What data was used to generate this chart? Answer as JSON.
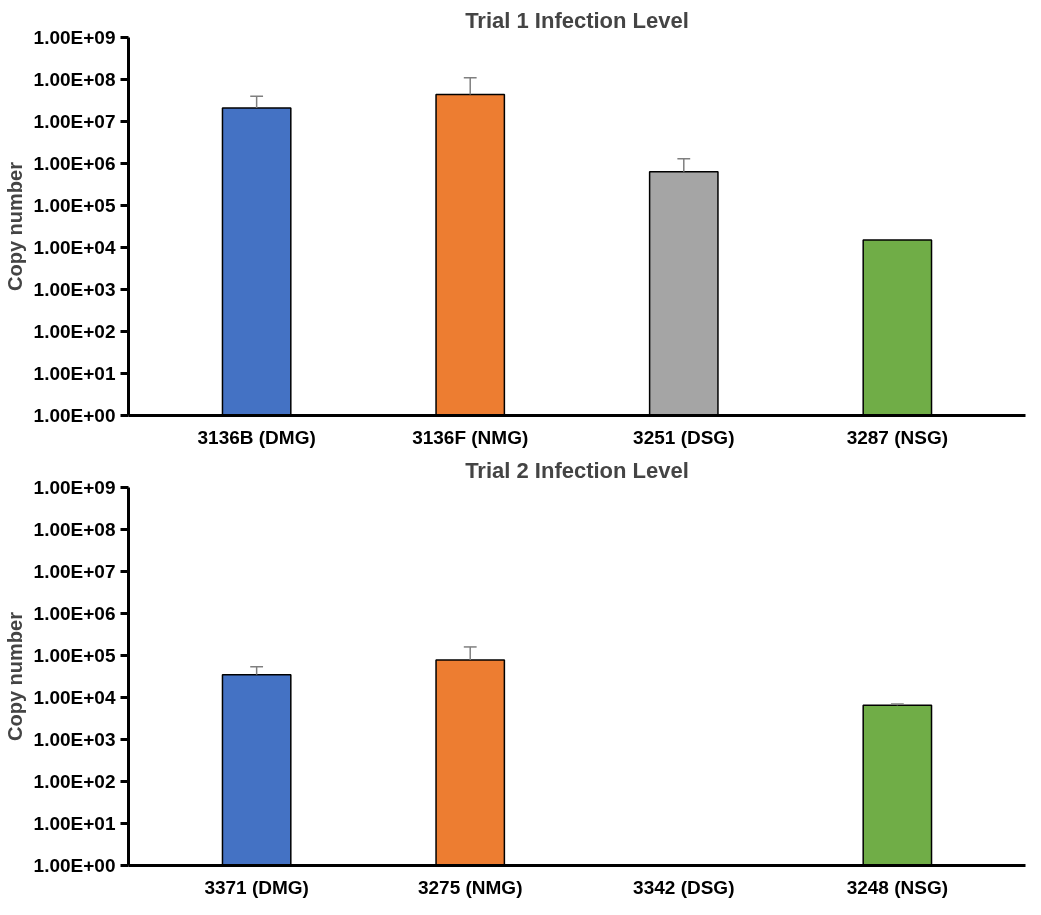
{
  "chart_data": [
    {
      "type": "bar",
      "title": "Trial 1 Infection Level",
      "ylabel": "Copy number",
      "log": "y",
      "grid": false,
      "categories": [
        "3136B (DMG)",
        "3136F (NMG)",
        "3251 (DSG)",
        "3287 (NSG)"
      ],
      "values": [
        21000000,
        44000000,
        640000,
        15000
      ],
      "colors": [
        "#4472c4",
        "#ed7d31",
        "#a5a5a5",
        "#70ad47"
      ],
      "errors": [
        [
          21000000,
          40000000
        ],
        [
          44000000,
          110000000
        ],
        [
          640000,
          1300000
        ],
        null
      ],
      "ylim": [
        1,
        1000000000
      ],
      "yticks": [
        {
          "value": 1,
          "label": "1.00E+00"
        },
        {
          "value": 10,
          "label": "1.00E+01"
        },
        {
          "value": 100,
          "label": "1.00E+02"
        },
        {
          "value": 1000,
          "label": "1.00E+03"
        },
        {
          "value": 10000,
          "label": "1.00E+04"
        },
        {
          "value": 100000,
          "label": "1.00E+05"
        },
        {
          "value": 1000000,
          "label": "1.00E+06"
        },
        {
          "value": 10000000,
          "label": "1.00E+07"
        },
        {
          "value": 100000000,
          "label": "1.00E+08"
        },
        {
          "value": 1000000000,
          "label": "1.00E+09"
        }
      ]
    },
    {
      "type": "bar",
      "title": "Trial 2 Infection Level",
      "ylabel": "Copy number",
      "log": "y",
      "grid": false,
      "categories": [
        "3371 (DMG)",
        "3275 (NMG)",
        "3342 (DSG)",
        "3248 (NSG)"
      ],
      "values": [
        35000,
        78000,
        null,
        6500
      ],
      "colors": [
        "#4472c4",
        "#ed7d31",
        "#a5a5a5",
        "#70ad47"
      ],
      "errors": [
        [
          35000,
          54000
        ],
        [
          78000,
          160000
        ],
        null,
        [
          6500,
          7000
        ]
      ],
      "ylim": [
        1,
        1000000000
      ],
      "yticks": [
        {
          "value": 1,
          "label": "1.00E+00"
        },
        {
          "value": 10,
          "label": "1.00E+01"
        },
        {
          "value": 100,
          "label": "1.00E+02"
        },
        {
          "value": 1000,
          "label": "1.00E+03"
        },
        {
          "value": 10000,
          "label": "1.00E+04"
        },
        {
          "value": 100000,
          "label": "1.00E+05"
        },
        {
          "value": 1000000,
          "label": "1.00E+06"
        },
        {
          "value": 10000000,
          "label": "1.00E+07"
        },
        {
          "value": 100000000,
          "label": "1.00E+08"
        },
        {
          "value": 1000000000,
          "label": "1.00E+09"
        }
      ]
    }
  ]
}
